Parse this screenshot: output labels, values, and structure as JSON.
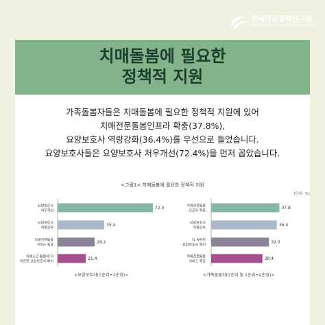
{
  "brand": {
    "name": "한국여성정책연구원",
    "subtitle": "Korean Women's Development Institute"
  },
  "headline": {
    "line1": "치매돌봄에 필요한",
    "line2": "정책적 지원"
  },
  "summary": [
    "가족돌봄자들은 치매돌봄에 필요한 정책적 지원에 있어",
    "치매전문돌봄인프라 확충(37.8%),",
    "요양보호사 역량강화(36.4%)를 우선으로 들었습니다.",
    "요양보호사들은 요양보호사 처우개선(72.4%)을 먼저 꼽았습니다."
  ],
  "figure": {
    "title": "<그림1> 치매돌봄에 필요한 정책적 지원",
    "unit": "(단위: %)"
  },
  "chart_data": [
    {
      "type": "bar",
      "orientation": "horizontal",
      "caption": "<요양보호사(1순위+2순위)>",
      "categories": [
        [
          "요양보호사",
          "처우개선"
        ],
        [
          "요양보호사",
          "역량강화"
        ],
        [
          "치매전문돌봄",
          "서비스 제공"
        ],
        [
          "치매노인 돌봄에 더",
          "숙련된 요양보호사 배치"
        ]
      ],
      "values": [
        72.4,
        35.4,
        28.2,
        21.4
      ],
      "value_labels": [
        "72.4",
        "35.4",
        "28.2",
        "21.4"
      ],
      "colors": [
        "#84b7a6",
        "#aab8cc",
        "#8d8499",
        "#a54f8e"
      ],
      "xlim": [
        0,
        75
      ],
      "grid": false
    },
    {
      "type": "bar",
      "orientation": "horizontal",
      "caption": "<가족돌봄자(1순위 및 1순위+2순위)>",
      "categories": [
        [
          "치매전문돌봄",
          "인프라 확충"
        ],
        [
          "요양보호사",
          "역량강화"
        ],
        [
          "더 숙련된",
          "요양보호사 배치"
        ],
        [
          "치매전문돌봄",
          "서비스 제공"
        ]
      ],
      "values": [
        37.8,
        36.4,
        32.0,
        28.4
      ],
      "value_labels": [
        "37.8",
        "36.4",
        "32.0",
        "28.4"
      ],
      "colors": [
        "#84b7a6",
        "#aab8cc",
        "#8d8499",
        "#a54f8e"
      ],
      "xlim": [
        0,
        38
      ],
      "grid": false
    }
  ]
}
